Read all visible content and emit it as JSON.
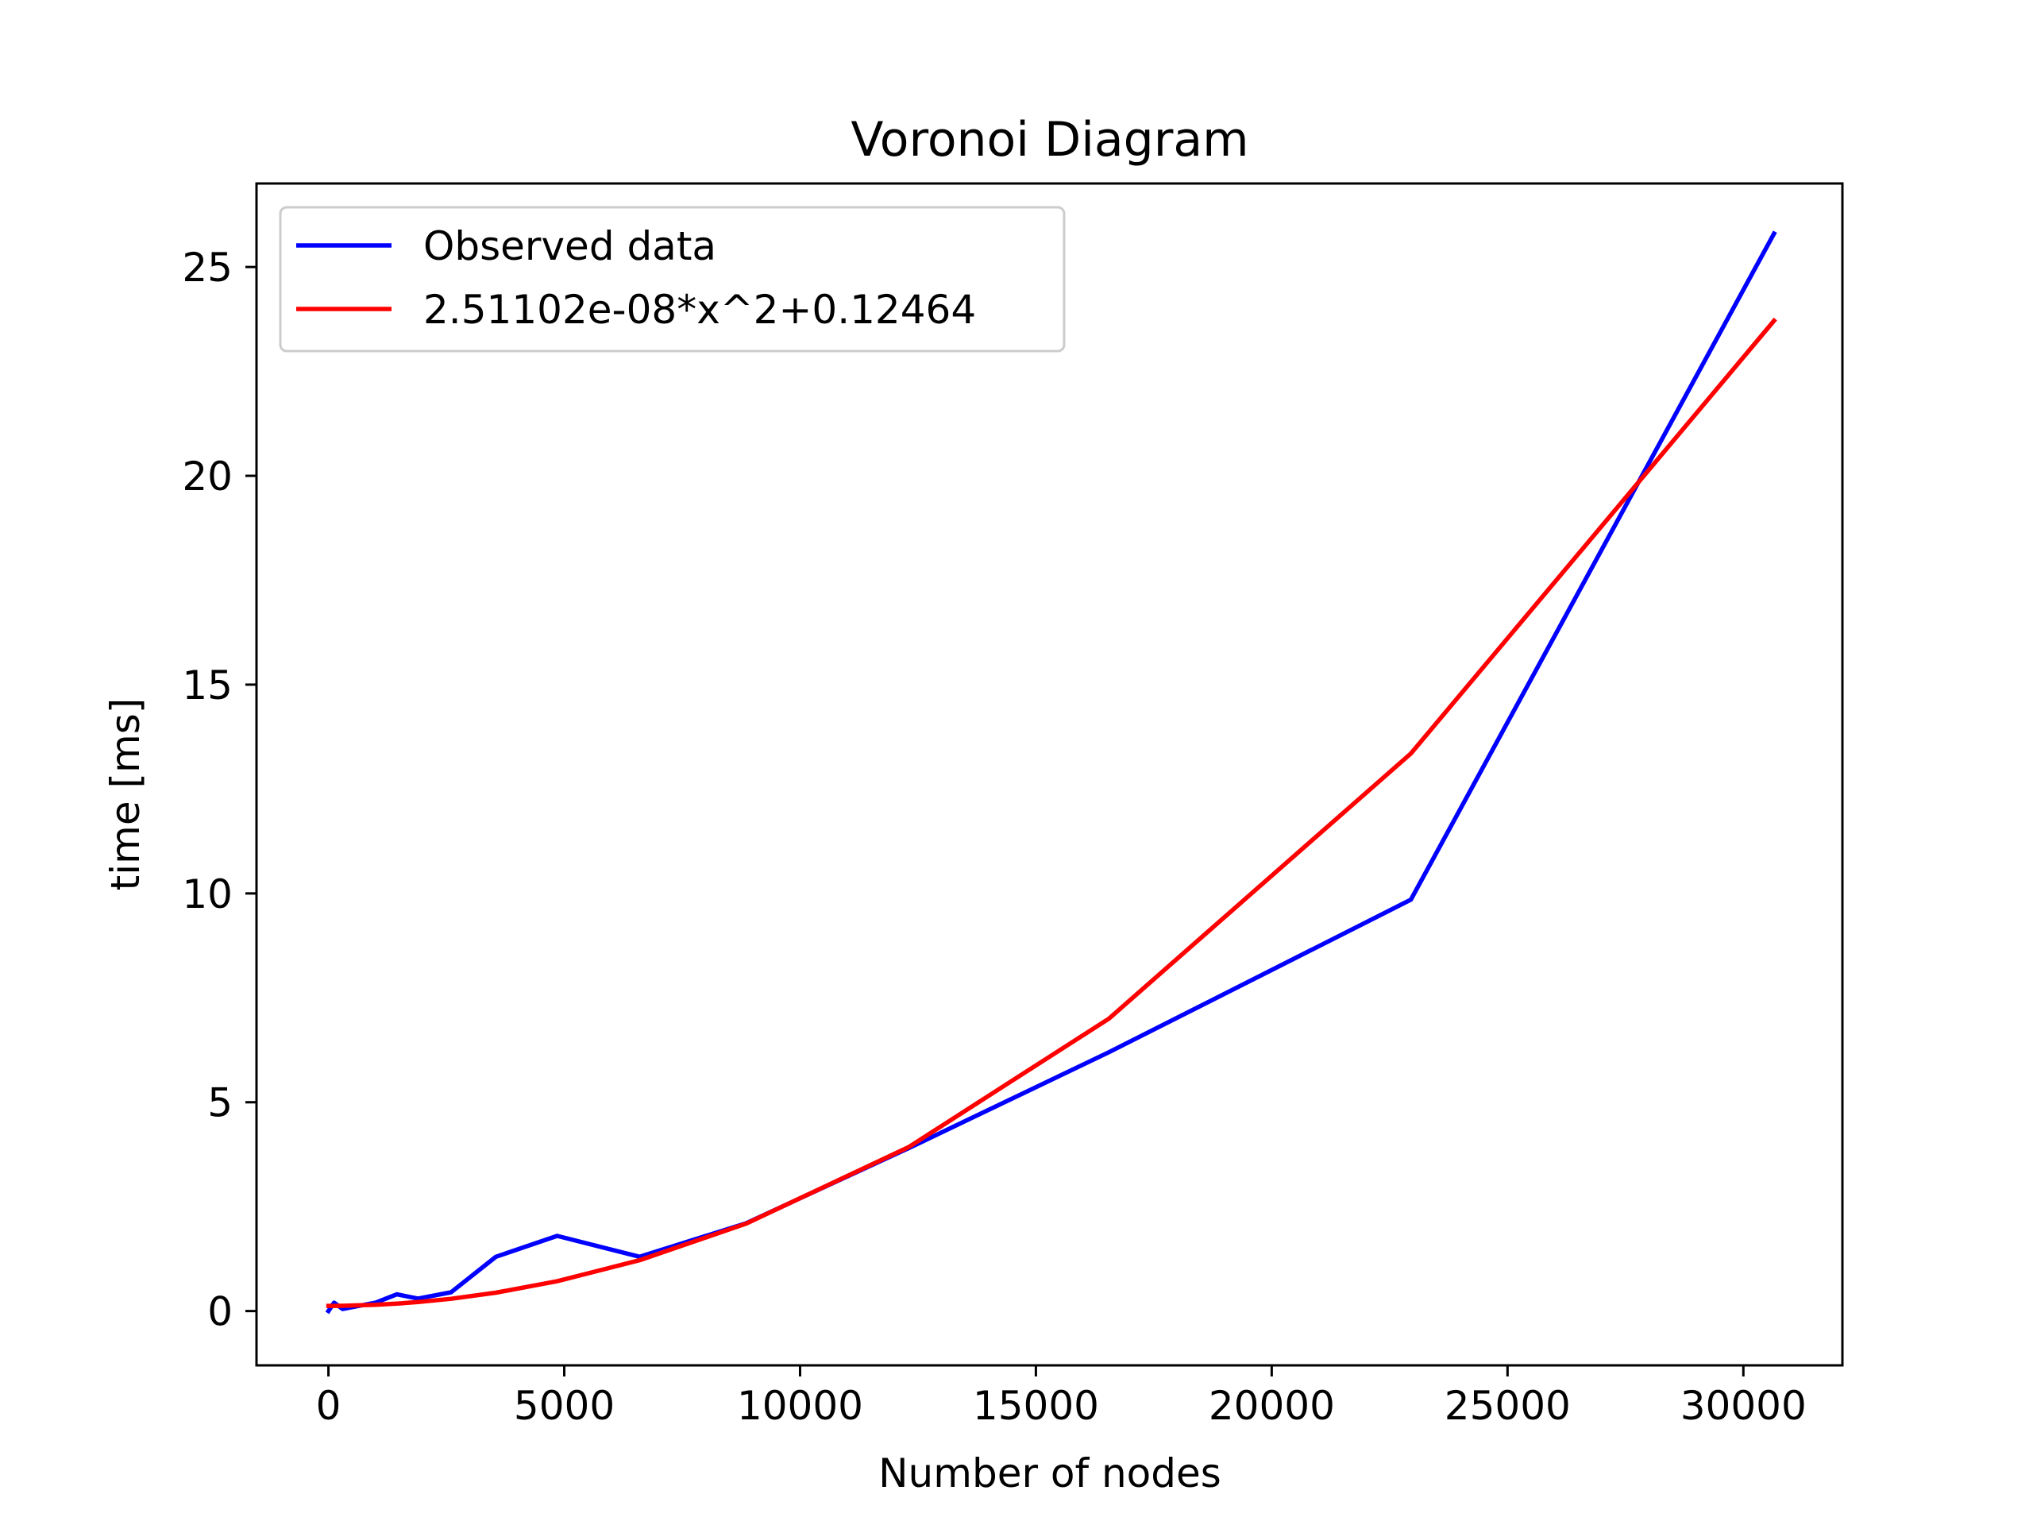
{
  "chart_data": {
    "type": "line",
    "title": "Voronoi Diagram",
    "xlabel": "Number of nodes",
    "ylabel": "time [ms]",
    "xlim": [
      -1525,
      32100
    ],
    "ylim": [
      -1.3,
      27.0
    ],
    "xticks": [
      0,
      5000,
      10000,
      15000,
      20000,
      25000,
      30000
    ],
    "yticks": [
      0,
      5,
      10,
      15,
      20,
      25
    ],
    "grid": false,
    "legend_position": "upper-left",
    "series": [
      {
        "name": "Observed data",
        "color": "#0000ff",
        "x": [
          0,
          120,
          300,
          1000,
          1450,
          1900,
          2600,
          3550,
          4850,
          6600,
          8850,
          12300,
          16550,
          22950,
          30650
        ],
        "y": [
          0.0,
          0.2,
          0.05,
          0.2,
          0.4,
          0.3,
          0.45,
          1.3,
          1.8,
          1.3,
          2.1,
          3.9,
          6.2,
          9.85,
          25.8
        ]
      },
      {
        "name": "2.51102e-08*x^2+0.12464",
        "color": "#ff0000",
        "x": [
          0,
          120,
          300,
          1000,
          1450,
          1900,
          2600,
          3550,
          4850,
          6600,
          8850,
          12300,
          16550,
          22950,
          30650
        ],
        "y": [
          0.125,
          0.125,
          0.127,
          0.15,
          0.177,
          0.215,
          0.294,
          0.441,
          0.715,
          1.218,
          2.091,
          3.924,
          7.003,
          13.35,
          23.714
        ]
      }
    ]
  }
}
